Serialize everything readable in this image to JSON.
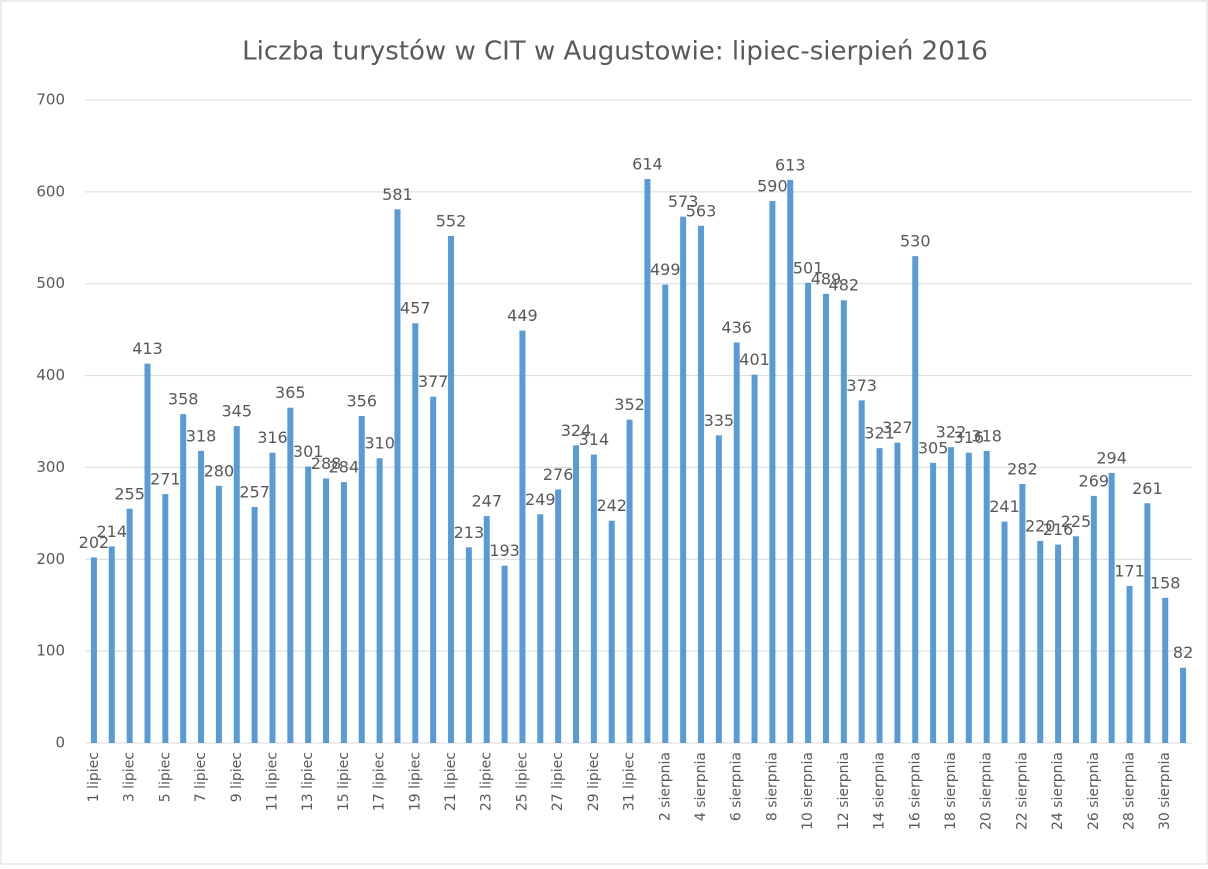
{
  "chart_data": {
    "type": "bar",
    "title": "Liczba turystów w CIT w Augustowie: lipiec-sierpień 2016",
    "categories": [
      "1 lipiec",
      null,
      "3 lipiec",
      null,
      "5 lipiec",
      null,
      "7 lipiec",
      null,
      "9 lipiec",
      null,
      "11 lipiec",
      null,
      "13 lipiec",
      null,
      "15 lipiec",
      null,
      "17 lipiec",
      null,
      "19 lipiec",
      null,
      "21 lipiec",
      null,
      "23 lipiec",
      null,
      "25 lipiec",
      null,
      "27 lipiec",
      null,
      "29 lipiec",
      null,
      "31 lipiec",
      null,
      "2 sierpnia",
      null,
      "4 sierpnia",
      null,
      "6 sierpnia",
      null,
      "8 sierpnia",
      null,
      "10 sierpnia",
      null,
      "12 sierpnia",
      null,
      "14 sierpnia",
      null,
      "16 sierpnia",
      null,
      "18 sierpnia",
      null,
      "20 sierpnia",
      null,
      "22 sierpnia",
      null,
      "24 sierpnia",
      null,
      "26 sierpnia",
      null,
      "28 sierpnia",
      null,
      "30 sierpnia",
      null
    ],
    "values": [
      202,
      214,
      255,
      413,
      271,
      358,
      318,
      280,
      345,
      257,
      316,
      365,
      301,
      288,
      284,
      356,
      310,
      581,
      457,
      377,
      552,
      213,
      247,
      193,
      449,
      249,
      276,
      324,
      314,
      242,
      352,
      614,
      499,
      573,
      563,
      335,
      436,
      401,
      590,
      613,
      501,
      489,
      482,
      373,
      321,
      327,
      530,
      305,
      322,
      316,
      318,
      241,
      282,
      220,
      216,
      225,
      269,
      294,
      171,
      261,
      158,
      82
    ],
    "color": "#5b9bd5",
    "ylim": [
      0,
      700
    ],
    "yticks": [
      0,
      100,
      200,
      300,
      400,
      500,
      600,
      700
    ],
    "grid": true
  }
}
